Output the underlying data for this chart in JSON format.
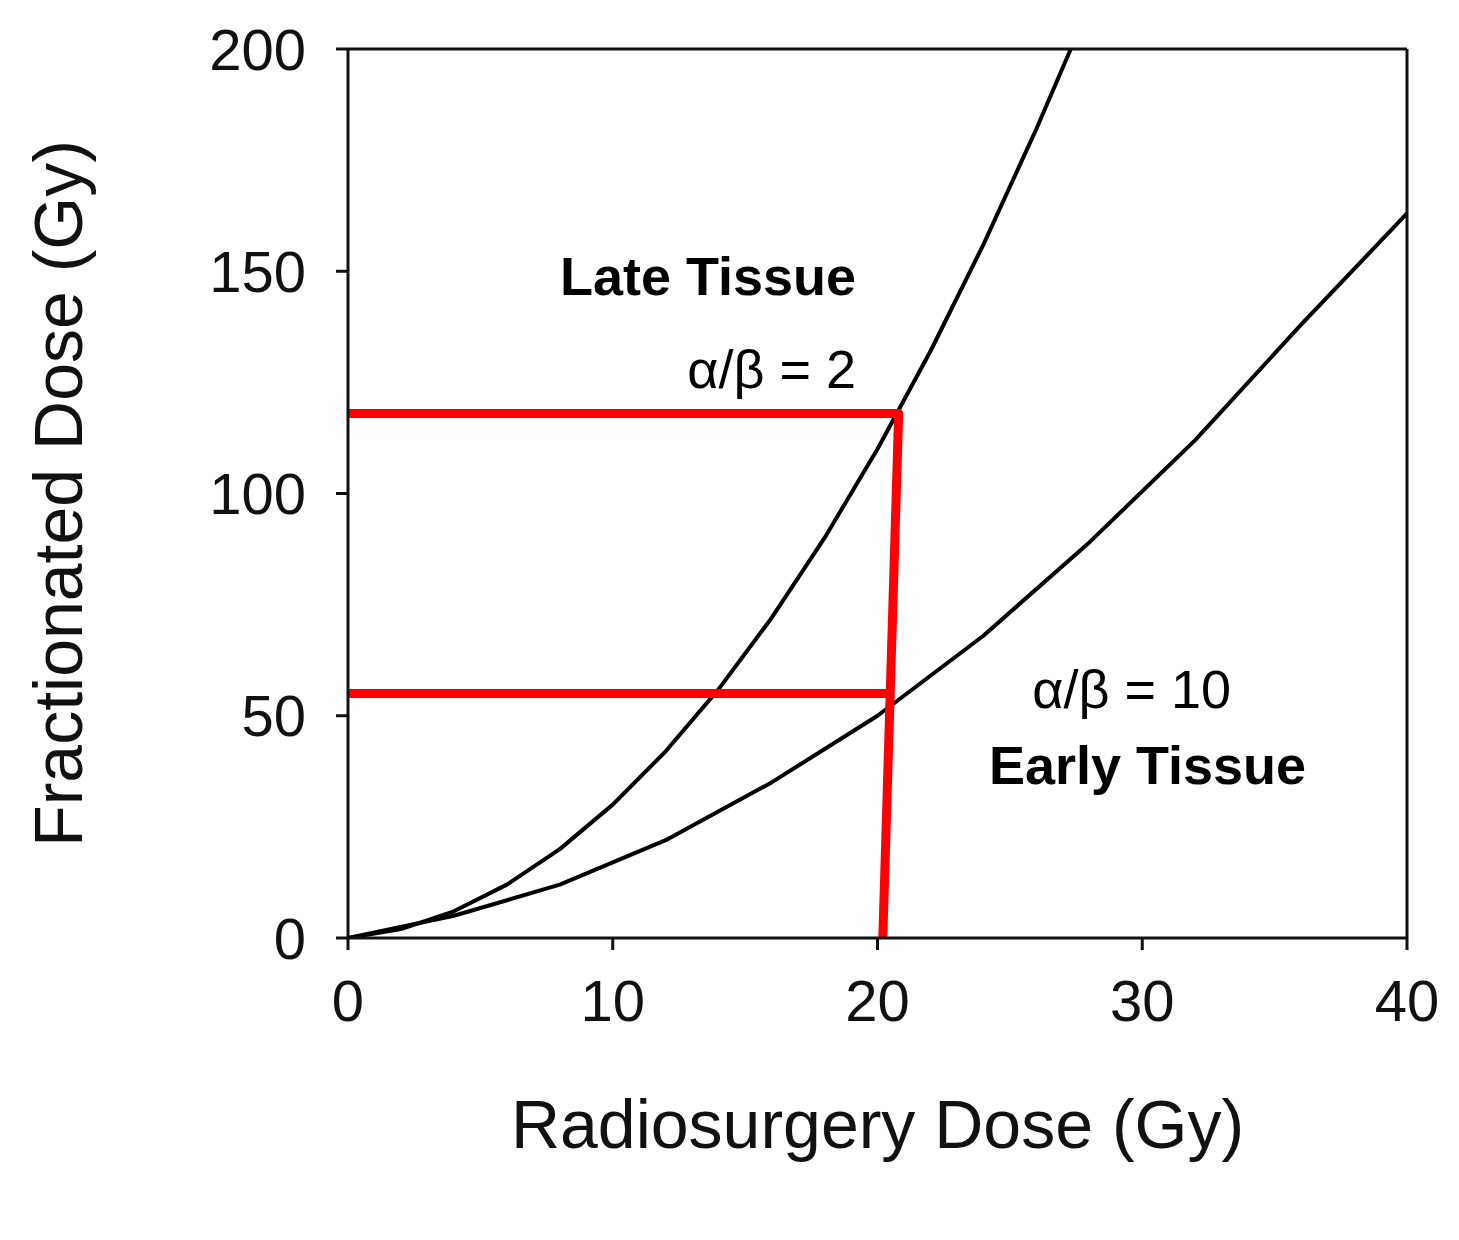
{
  "chart_data": {
    "type": "line",
    "xlabel": "Radiosurgery Dose (Gy)",
    "ylabel": "Fractionated Dose (Gy)",
    "xlim": [
      0,
      40
    ],
    "xticks": [
      0,
      10,
      20,
      30,
      40
    ],
    "ylim": [
      0,
      200
    ],
    "yticks": [
      0,
      50,
      100,
      150,
      200
    ],
    "grid": false,
    "marker": "none",
    "line_style": "solid",
    "series": [
      {
        "color": "#000000",
        "x": [
          0,
          2,
          4,
          6,
          8,
          10,
          12,
          14,
          16,
          18,
          20,
          22,
          24,
          26,
          27.3
        ],
        "values": [
          0,
          2,
          6,
          12,
          20,
          30,
          42,
          56,
          72,
          90,
          110,
          132,
          156,
          182,
          200
        ]
      },
      {
        "color": "#000000",
        "x": [
          0,
          4,
          8,
          12,
          16,
          20,
          24,
          28,
          32,
          36,
          40
        ],
        "values": [
          0,
          5,
          12,
          22,
          35,
          50,
          68,
          89,
          112,
          138,
          163
        ]
      },
      {
        "color": "#ff0000",
        "x": [
          0,
          20.8,
          20.2
        ],
        "values": [
          118,
          118,
          0
        ]
      },
      {
        "color": "#ff0000",
        "x": [
          0,
          20.5
        ],
        "values": [
          55,
          55
        ]
      }
    ],
    "annotations": [
      "Late Tissue",
      "α/β = 2",
      "α/β = 10",
      "Early Tissue"
    ]
  }
}
